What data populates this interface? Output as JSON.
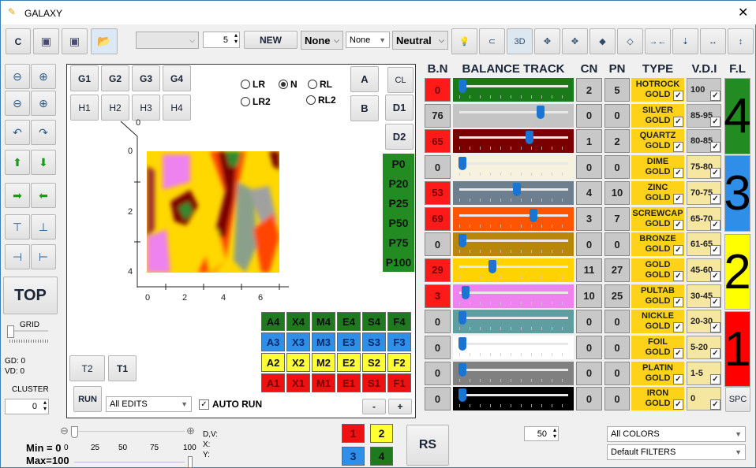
{
  "window": {
    "title": "GALAXY",
    "close_icon": "close-icon"
  },
  "toolbar": {
    "c_label": "C",
    "save_icon": "save-icon",
    "save_as_icon": "save-as-icon",
    "open_icon": "folder-open-icon",
    "combo_value": "",
    "spin_value": "5",
    "new_label": "NEW",
    "none1": "None",
    "none2": "None",
    "neutral": "Neutral",
    "icons": [
      "lightbulb-icon",
      "lasso-icon",
      "3d-icon",
      "move-select-icon",
      "move-select-alt-icon",
      "eraser-icon",
      "eraser-alt-icon",
      "compress-horizontal-icon",
      "compress-vertical-icon",
      "expand-horizontal-icon",
      "expand-vertical-icon"
    ],
    "icon_glyphs": [
      "💡",
      "⊂",
      "3D",
      "✥",
      "✥",
      "◆",
      "◇",
      "→←",
      "⇣",
      "↔",
      "↕"
    ]
  },
  "left": {
    "icons": [
      [
        "flip-vertical-icon",
        "⊖"
      ],
      [
        "flip-vertical-alt-icon",
        "⊕"
      ],
      [
        "flip-horizontal-icon",
        "⊖"
      ],
      [
        "flip-horizontal-alt-icon",
        "⊕"
      ],
      [
        "rotate-left-icon",
        "↶"
      ],
      [
        "rotate-right-icon",
        "↷"
      ],
      [
        "arrow-up-icon",
        "⬆"
      ],
      [
        "arrow-down-icon",
        "⬇"
      ],
      [
        "arrow-right-icon",
        "➡"
      ],
      [
        "arrow-left-icon",
        "⬅"
      ],
      [
        "insert-row-top-icon",
        "⊤"
      ],
      [
        "insert-row-bottom-icon",
        "⊥"
      ],
      [
        "insert-col-left-icon",
        "⊣"
      ],
      [
        "insert-col-right-icon",
        "⊢"
      ]
    ],
    "top_label": "TOP",
    "grid_label": "GRID",
    "grid_value": 0,
    "gd": "GD: 0",
    "vd": "VD: 0",
    "cluster_label": "CLUSTER",
    "cluster_value": "0"
  },
  "panel": {
    "g": [
      "G1",
      "G2",
      "G3",
      "G4"
    ],
    "h": [
      "H1",
      "H2",
      "H3",
      "H4"
    ],
    "radios": [
      {
        "label": "LR",
        "on": false
      },
      {
        "label": "N",
        "on": true
      },
      {
        "label": "RL",
        "on": false
      },
      {
        "label": "LR2",
        "on": false
      },
      {
        "label": "RL2",
        "on": false
      }
    ],
    "a": "A",
    "b": "B",
    "cl": "CL",
    "d1": "D1",
    "d2": "D2",
    "p": [
      "P0",
      "P20",
      "P25",
      "P50",
      "P75",
      "P100"
    ],
    "grid_rows": [
      {
        "color": "#1f7a1f",
        "text": "#111",
        "items": [
          "A4",
          "X4",
          "M4",
          "E4",
          "S4",
          "F4"
        ]
      },
      {
        "color": "#2f8fe8",
        "text": "#0b2a6b",
        "items": [
          "A3",
          "X3",
          "M3",
          "E3",
          "S3",
          "F3"
        ]
      },
      {
        "color": "#ffff33",
        "text": "#111",
        "items": [
          "A2",
          "X2",
          "M2",
          "E2",
          "S2",
          "F2"
        ]
      },
      {
        "color": "#ee1111",
        "text": "#7a0000",
        "items": [
          "A1",
          "X1",
          "M1",
          "E1",
          "S1",
          "F1"
        ]
      }
    ],
    "t2": "T2",
    "t1": "T1",
    "run": "RUN",
    "edits": "All EDITS",
    "auto_run": "AUTO RUN",
    "auto_run_checked": true,
    "minus": "-",
    "plus": "+"
  },
  "chart_data": {
    "type": "heatmap",
    "z_axis_tick": "0",
    "x_ticks": [
      "0",
      "2",
      "4",
      "6"
    ],
    "y_ticks": [
      "0",
      "2",
      "4"
    ],
    "xlim": [
      0,
      7
    ],
    "ylim": [
      4,
      0
    ],
    "colors": [
      "#ffd800",
      "#ee82ee",
      "#7a0000",
      "#ff4500",
      "#2e8b2e",
      "#a0a0a0"
    ]
  },
  "table": {
    "headers": [
      "B.N",
      "BALANCE TRACK",
      "CN",
      "PN",
      "TYPE",
      "V.D.I",
      "F.L"
    ],
    "rows": [
      {
        "bn": "0",
        "alert": true,
        "track": "#1a7a1a",
        "value": 0,
        "cn": "2",
        "pn": "5",
        "type1": "HOTROCK",
        "type2": "GOLD",
        "vdi": "100",
        "vdi_bg": "#c8c8c8"
      },
      {
        "bn": "76",
        "alert": false,
        "track": "#c4c4c4",
        "value": 76,
        "cn": "0",
        "pn": "0",
        "type1": "SILVER",
        "type2": "GOLD",
        "vdi": "85-95",
        "vdi_bg": "#c8c8c8"
      },
      {
        "bn": "65",
        "alert": true,
        "track": "#7a0000",
        "value": 65,
        "cn": "1",
        "pn": "2",
        "type1": "QUARTZ",
        "type2": "GOLD",
        "vdi": "80-85",
        "vdi_bg": "#c8c8c8"
      },
      {
        "bn": "0",
        "alert": false,
        "track": "#f6f2de",
        "value": 0,
        "cn": "0",
        "pn": "0",
        "type1": "DIME",
        "type2": "GOLD",
        "vdi": "75-80",
        "vdi_bg": "#f5e6a0"
      },
      {
        "bn": "53",
        "alert": true,
        "track": "#6d7f8f",
        "value": 53,
        "cn": "4",
        "pn": "10",
        "type1": "ZINC",
        "type2": "GOLD",
        "vdi": "70-75",
        "vdi_bg": "#f5e6a0"
      },
      {
        "bn": "69",
        "alert": true,
        "track": "#ff5500",
        "value": 69,
        "cn": "3",
        "pn": "7",
        "type1": "SCREWCAP",
        "type2": "GOLD",
        "vdi": "65-70",
        "vdi_bg": "#f5e6a0"
      },
      {
        "bn": "0",
        "alert": false,
        "track": "#b8860b",
        "value": 0,
        "cn": "0",
        "pn": "0",
        "type1": "BRONZE",
        "type2": "GOLD",
        "vdi": "61-65",
        "vdi_bg": "#f5e6a0"
      },
      {
        "bn": "29",
        "alert": true,
        "track": "#ffd200",
        "value": 29,
        "cn": "11",
        "pn": "27",
        "type1": "GOLD",
        "type2": "GOLD",
        "vdi": "45-60",
        "vdi_bg": "#f5e6a0"
      },
      {
        "bn": "3",
        "alert": true,
        "track": "#ee82ee",
        "value": 3,
        "cn": "10",
        "pn": "25",
        "type1": "PULTAB",
        "type2": "GOLD",
        "vdi": "30-45",
        "vdi_bg": "#f5e6a0"
      },
      {
        "bn": "0",
        "alert": false,
        "track": "#5f9ea0",
        "value": 0,
        "cn": "0",
        "pn": "0",
        "type1": "NICKLE",
        "type2": "GOLD",
        "vdi": "20-30",
        "vdi_bg": "#f5e6a0"
      },
      {
        "bn": "0",
        "alert": false,
        "track": "#ffffff",
        "value": 0,
        "cn": "0",
        "pn": "0",
        "type1": "FOIL",
        "type2": "GOLD",
        "vdi": "5-20",
        "vdi_bg": "#f5e6a0"
      },
      {
        "bn": "0",
        "alert": false,
        "track": "#808080",
        "value": 0,
        "cn": "0",
        "pn": "0",
        "type1": "PLATIN",
        "type2": "GOLD",
        "vdi": "1-5",
        "vdi_bg": "#f5e6a0"
      },
      {
        "bn": "0",
        "alert": false,
        "track": "#000000",
        "value": 0,
        "cn": "0",
        "pn": "0",
        "type1": "IRON",
        "type2": "GOLD",
        "vdi": "0",
        "vdi_bg": "#f5e6a0"
      }
    ],
    "levels": [
      {
        "label": "4",
        "color": "#228b22"
      },
      {
        "label": "3",
        "color": "#2f8fe8"
      },
      {
        "label": "2",
        "color": "#ffff00"
      },
      {
        "label": "1",
        "color": "#ff0000"
      }
    ],
    "spc": "SPC"
  },
  "bottom": {
    "min": "Min = 0",
    "max": "Max=100",
    "ticks": [
      "0",
      "25",
      "50",
      "75",
      "100"
    ],
    "min_value": 0,
    "max_value": 100,
    "dv": "D,V:",
    "x": "X:",
    "y": "Y:",
    "colors": [
      {
        "label": "1",
        "color": "#ee1111"
      },
      {
        "label": "2",
        "color": "#ffff33"
      },
      {
        "label": "3",
        "color": "#2f8fe8"
      },
      {
        "label": "4",
        "color": "#1f7a1f"
      }
    ],
    "rs": "RS",
    "spin": "50",
    "colors_select": "All COLORS",
    "filters_select": "Default FILTERS"
  }
}
